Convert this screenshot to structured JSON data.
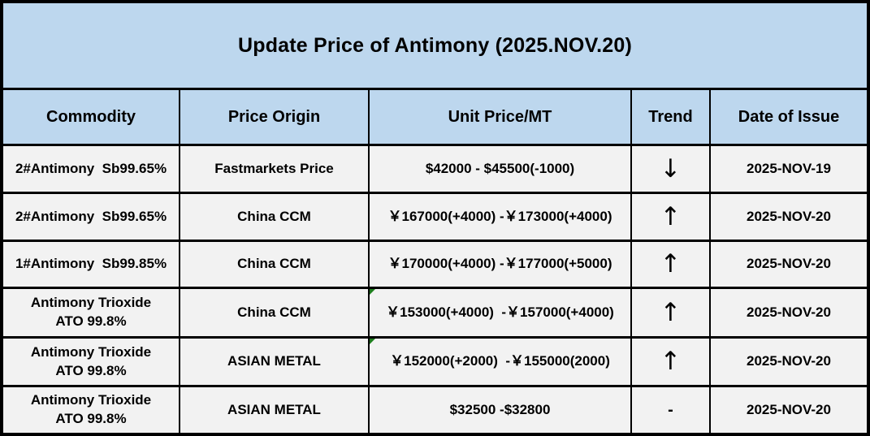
{
  "title": "Update Price of Antimony (2025.NOV.20)",
  "columns": {
    "commodity": "Commodity",
    "origin": "Price Origin",
    "price": "Unit Price/MT",
    "trend": "Trend",
    "date": "Date of Issue"
  },
  "rows": [
    {
      "commodity": "2#Antimony  Sb99.65%",
      "origin": "Fastmarkets Price",
      "price": "$42000 - $45500(-1000)",
      "trend": "↓",
      "trend_direction": "down",
      "date": "2025-NOV-19",
      "corner_marker": false
    },
    {
      "commodity": "2#Antimony  Sb99.65%",
      "origin": "China CCM",
      "price": "￥167000(+4000) -￥173000(+4000)",
      "trend": "↑",
      "trend_direction": "up",
      "date": "2025-NOV-20",
      "corner_marker": false
    },
    {
      "commodity": "1#Antimony  Sb99.85%",
      "origin": "China CCM",
      "price": "￥170000(+4000) -￥177000(+5000)",
      "trend": "↑",
      "trend_direction": "up",
      "date": "2025-NOV-20",
      "corner_marker": false
    },
    {
      "commodity": "Antimony Trioxide\nATO 99.8%",
      "origin": "China CCM",
      "price": "￥153000(+4000)  -￥157000(+4000)",
      "trend": "↑",
      "trend_direction": "up",
      "date": "2025-NOV-20",
      "corner_marker": true
    },
    {
      "commodity": "Antimony Trioxide\nATO 99.8%",
      "origin": "ASIAN METAL",
      "price": "￥152000(+2000)  -￥155000(2000)",
      "trend": "↑",
      "trend_direction": "up",
      "date": "2025-NOV-20",
      "corner_marker": true
    },
    {
      "commodity": "Antimony Trioxide\nATO 99.8%",
      "origin": "ASIAN METAL",
      "price": "$32500 -$32800",
      "trend": "-",
      "trend_direction": "flat",
      "date": "2025-NOV-20",
      "corner_marker": false
    }
  ],
  "colors": {
    "header_bg": "#BDD7EE",
    "row_bg": "#F2F2F2",
    "border": "#000000",
    "text": "#000000",
    "corner_marker_green": "#1E7E1E"
  }
}
